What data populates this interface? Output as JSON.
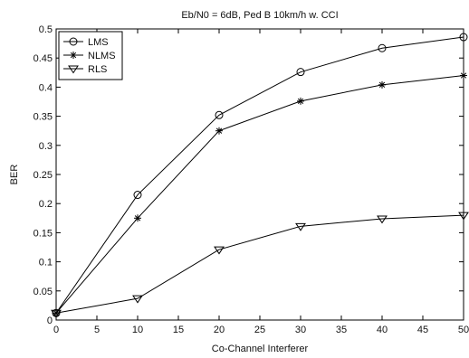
{
  "chart_data": {
    "type": "line",
    "title": "Eb/N0 = 6dB, Ped B 10km/h w. CCI",
    "xlabel": "Co-Channel Interferer",
    "ylabel": "BER",
    "xlim": [
      0,
      50
    ],
    "ylim": [
      0,
      0.5
    ],
    "xticks": [
      0,
      5,
      10,
      15,
      20,
      25,
      30,
      35,
      40,
      45,
      50
    ],
    "yticks": [
      0,
      0.05,
      0.1,
      0.15,
      0.2,
      0.25,
      0.3,
      0.35,
      0.4,
      0.45,
      0.5
    ],
    "ytick_labels": [
      "0",
      "0.05",
      "0.1",
      "0.15",
      "0.2",
      "0.25",
      "0.3",
      "0.35",
      "0.4",
      "0.45",
      "0.5"
    ],
    "grid": false,
    "legend_position": "top-left",
    "x": [
      0,
      10,
      20,
      30,
      40,
      50
    ],
    "series": [
      {
        "name": "LMS",
        "marker": "circle",
        "values": [
          0.012,
          0.215,
          0.352,
          0.426,
          0.467,
          0.486
        ]
      },
      {
        "name": "NLMS",
        "marker": "star",
        "values": [
          0.012,
          0.175,
          0.325,
          0.376,
          0.404,
          0.42
        ]
      },
      {
        "name": "RLS",
        "marker": "triangle-down",
        "values": [
          0.012,
          0.037,
          0.121,
          0.161,
          0.174,
          0.18
        ]
      }
    ],
    "line_color": "#000000"
  }
}
